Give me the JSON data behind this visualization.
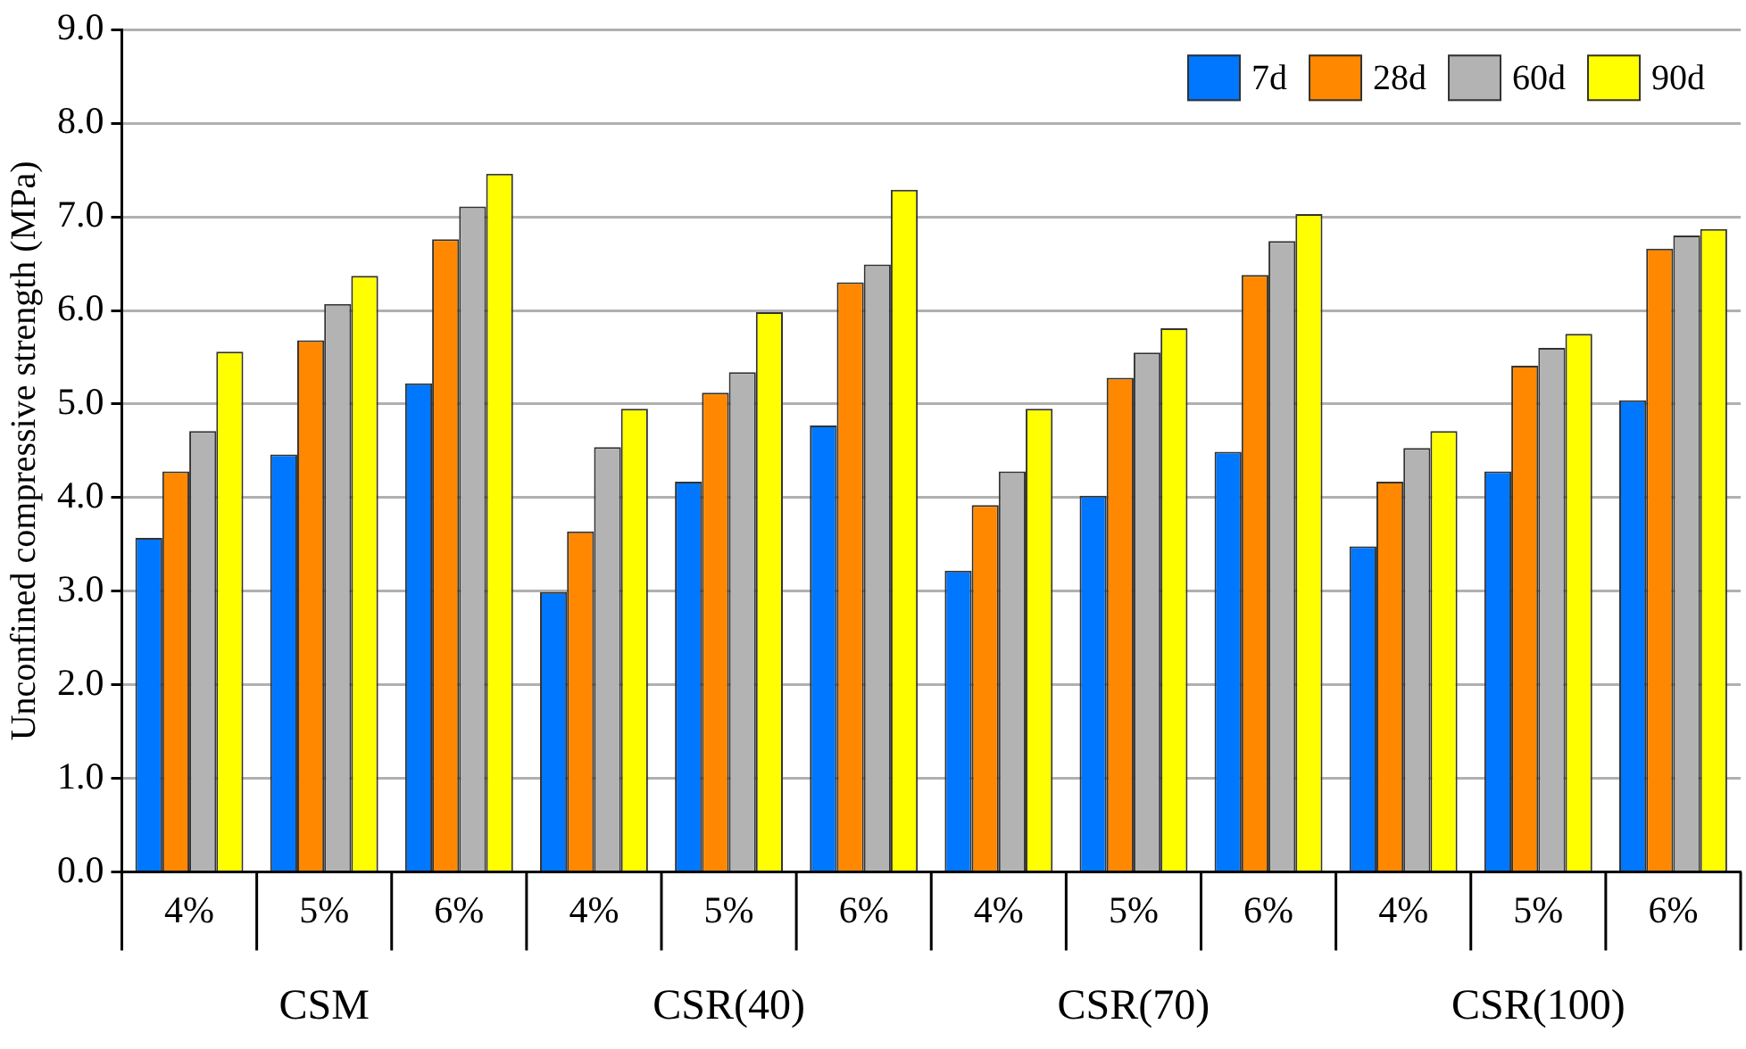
{
  "chart_data": {
    "type": "bar",
    "ylabel": "Unconfined compressive strength (MPa)",
    "categories": [
      "4%",
      "5%",
      "6%",
      "4%",
      "5%",
      "6%",
      "4%",
      "5%",
      "6%",
      "4%",
      "5%",
      "6%"
    ],
    "series": [
      {
        "name": "7d",
        "color": "#0077ff",
        "values": [
          3.57,
          4.46,
          5.22,
          2.99,
          4.17,
          4.77,
          3.22,
          4.02,
          4.49,
          3.48,
          4.28,
          5.04
        ]
      },
      {
        "name": "28d",
        "color": "#ff8800",
        "values": [
          4.28,
          5.68,
          6.76,
          3.64,
          5.12,
          6.3,
          3.92,
          5.28,
          6.38,
          4.17,
          5.41,
          6.66
        ]
      },
      {
        "name": "60d",
        "color": "#b3b3b3",
        "values": [
          4.71,
          6.07,
          7.11,
          4.54,
          5.34,
          6.49,
          4.28,
          5.55,
          6.74,
          4.53,
          5.6,
          6.8
        ]
      },
      {
        "name": "90d",
        "color": "#ffff00",
        "values": [
          5.56,
          6.37,
          7.46,
          4.95,
          5.98,
          7.29,
          4.95,
          5.81,
          7.03,
          4.71,
          5.75,
          6.87
        ]
      }
    ],
    "annotations": [
      "CSM",
      "CSR(40)",
      "CSR(70)",
      "CSR(100)"
    ],
    "ylim": [
      0,
      9
    ],
    "yticks": [
      {
        "value": 0,
        "label": "0.0"
      },
      {
        "value": 1,
        "label": "1.0"
      },
      {
        "value": 2,
        "label": "2.0"
      },
      {
        "value": 3,
        "label": "3.0"
      },
      {
        "value": 4,
        "label": "4.0"
      },
      {
        "value": 5,
        "label": "5.0"
      },
      {
        "value": 6,
        "label": "6.0"
      },
      {
        "value": 7,
        "label": "7.0"
      },
      {
        "value": 8,
        "label": "8.0"
      },
      {
        "value": 9,
        "label": "9.0"
      }
    ],
    "grid": "y",
    "legend": "top right"
  }
}
